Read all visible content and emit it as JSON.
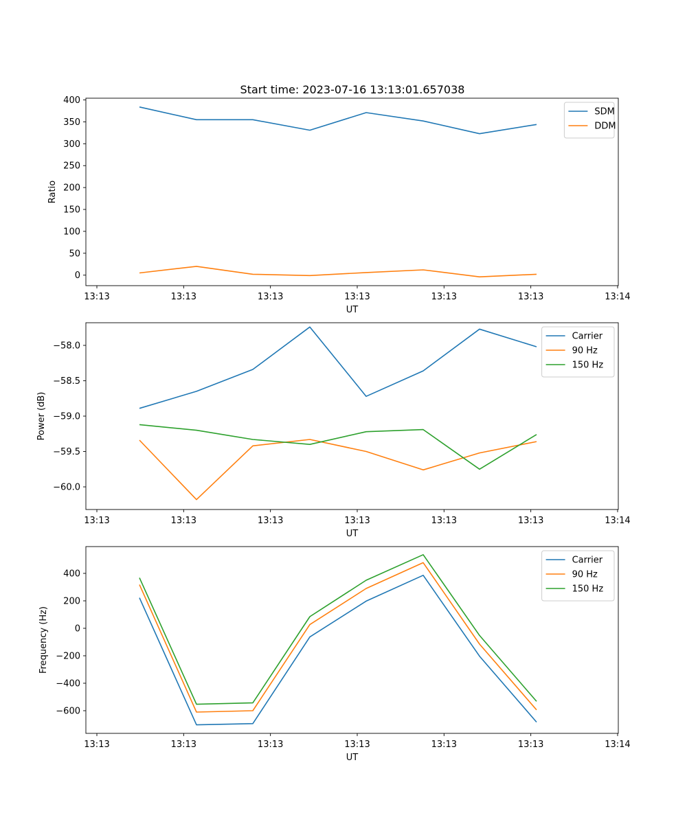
{
  "figure_title": "Start time: 2023-07-16 13:13:01.657038",
  "chart_data": [
    {
      "type": "line",
      "xlabel": "UT",
      "ylabel": "Ratio",
      "x_ticks": [
        "13:13",
        "13:13",
        "13:13",
        "13:13",
        "13:13",
        "13:13",
        "13:14"
      ],
      "ylim": [
        -24,
        404
      ],
      "y_ticks": [
        0,
        50,
        100,
        150,
        200,
        250,
        300,
        350,
        400
      ],
      "y_tick_labels": [
        "0",
        "50",
        "100",
        "150",
        "200",
        "250",
        "300",
        "350",
        "400"
      ],
      "legend_position": "top-right",
      "series": [
        {
          "name": "SDM",
          "color": "#1f77b4",
          "values": [
            384,
            355,
            355,
            331,
            371,
            352,
            323,
            344
          ]
        },
        {
          "name": "DDM",
          "color": "#ff7f0e",
          "values": [
            5,
            20,
            2,
            -1,
            6,
            12,
            -4,
            2
          ]
        }
      ]
    },
    {
      "type": "line",
      "xlabel": "UT",
      "ylabel": "Power (dB)",
      "x_ticks": [
        "13:13",
        "13:13",
        "13:13",
        "13:13",
        "13:13",
        "13:13",
        "13:14"
      ],
      "ylim": [
        -60.32,
        -57.68
      ],
      "y_ticks": [
        -60.0,
        -59.5,
        -59.0,
        -58.5,
        -58.0
      ],
      "y_tick_labels": [
        "−60.0",
        "−59.5",
        "−59.0",
        "−58.5",
        "−58.0"
      ],
      "legend_position": "top-right",
      "series": [
        {
          "name": "Carrier",
          "color": "#1f77b4",
          "values": [
            -58.89,
            -58.65,
            -58.34,
            -57.74,
            -58.72,
            -58.36,
            -57.77,
            -58.02
          ]
        },
        {
          "name": "90 Hz",
          "color": "#ff7f0e",
          "values": [
            -59.34,
            -60.18,
            -59.42,
            -59.33,
            -59.5,
            -59.76,
            -59.52,
            -59.36
          ]
        },
        {
          "name": "150 Hz",
          "color": "#2ca02c",
          "values": [
            -59.12,
            -59.2,
            -59.33,
            -59.4,
            -59.22,
            -59.19,
            -59.75,
            -59.26
          ]
        }
      ]
    },
    {
      "type": "line",
      "xlabel": "UT",
      "ylabel": "Frequency (Hz)",
      "x_ticks": [
        "13:13",
        "13:13",
        "13:13",
        "13:13",
        "13:13",
        "13:13",
        "13:14"
      ],
      "ylim": [
        -765,
        595
      ],
      "y_ticks": [
        -600,
        -400,
        -200,
        0,
        200,
        400
      ],
      "y_tick_labels": [
        "−600",
        "−400",
        "−200",
        "0",
        "200",
        "400"
      ],
      "legend_position": "top-right",
      "series": [
        {
          "name": "Carrier",
          "color": "#1f77b4",
          "values": [
            222,
            -703,
            -694,
            -63,
            198,
            386,
            -203,
            -683
          ]
        },
        {
          "name": "90 Hz",
          "color": "#ff7f0e",
          "values": [
            318,
            -610,
            -600,
            27,
            290,
            478,
            -115,
            -594
          ]
        },
        {
          "name": "150 Hz",
          "color": "#2ca02c",
          "values": [
            368,
            -553,
            -543,
            85,
            350,
            536,
            -52,
            -532
          ]
        }
      ]
    }
  ]
}
